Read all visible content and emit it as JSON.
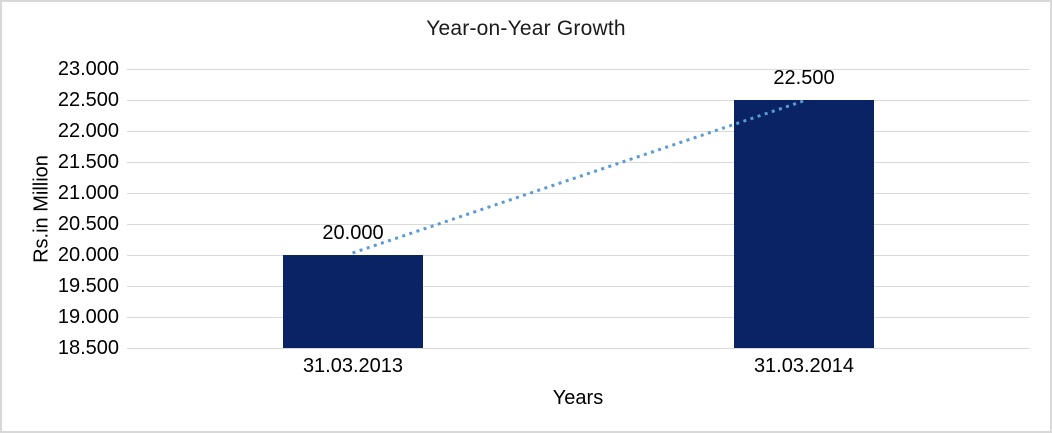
{
  "chart_data": {
    "type": "bar",
    "title": "Year-on-Year Growth",
    "xlabel": "Years",
    "ylabel": "Rs.in Million",
    "categories": [
      "31.03.2013",
      "31.03.2014"
    ],
    "values": [
      20000,
      22500
    ],
    "value_labels": [
      "20.000",
      "22.500"
    ],
    "ylim": [
      18500,
      23000
    ],
    "ytick_step": 500,
    "ytick_labels": [
      "23.000",
      "22.500",
      "22.000",
      "21.500",
      "21.000",
      "20.500",
      "20.000",
      "19.500",
      "19.000",
      "18.500"
    ],
    "grid": true,
    "legend": false,
    "trendline": {
      "style": "dotted",
      "from_value": 20000,
      "to_value": 22500
    },
    "colors": {
      "bar": "#0a2364",
      "trendline": "#5b9bd5",
      "gridline": "#d9d9d9",
      "text": "#000000",
      "frame_border": "#d8d8d8",
      "background": "#ffffff"
    }
  }
}
